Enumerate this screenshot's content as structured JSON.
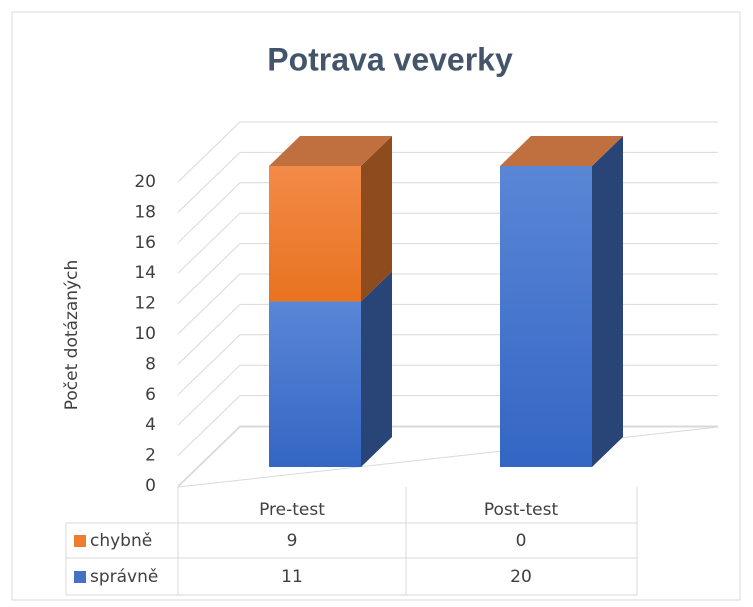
{
  "chart_data": {
    "type": "bar3d_stacked",
    "title": "Potrava veverky",
    "y_label": "Počet dotázaných",
    "categories": [
      "Pre-test",
      "Post-test"
    ],
    "series": [
      {
        "name": "správně",
        "color": "#4472c4",
        "values": [
          11,
          20
        ]
      },
      {
        "name": "chybně",
        "color": "#ed7d31",
        "values": [
          9,
          0
        ]
      }
    ],
    "ylim": [
      0,
      20
    ],
    "yticks": [
      0,
      2,
      4,
      6,
      8,
      10,
      12,
      14,
      16,
      18,
      20
    ],
    "grid": true,
    "data_table": true
  }
}
